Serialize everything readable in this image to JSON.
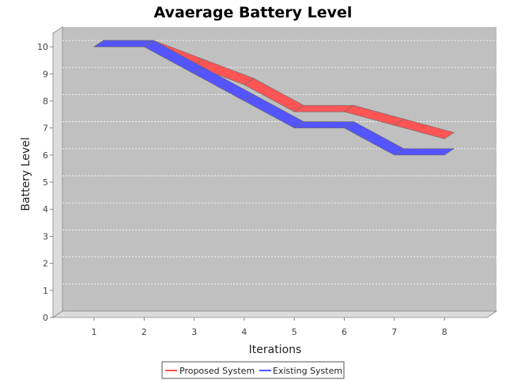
{
  "chart_data": {
    "type": "line",
    "style": "3d",
    "title": "Avaerage Battery Level",
    "xlabel": "Iterations",
    "ylabel": "Battery Level",
    "categories": [
      "1",
      "2",
      "3",
      "4",
      "5",
      "6",
      "7",
      "8"
    ],
    "yticks": [
      "0",
      "1",
      "2",
      "3",
      "4",
      "5",
      "6",
      "7",
      "8",
      "9",
      "10"
    ],
    "ylim": [
      0,
      10.5
    ],
    "grid": true,
    "legend_position": "bottom-center",
    "plot_background": "#c0c0c0",
    "wall_color": "#dcdcdc",
    "series": [
      {
        "name": "Proposed System",
        "color": "#ff5555",
        "values": [
          10,
          10,
          9.3,
          8.6,
          7.6,
          7.6,
          7.1,
          6.6
        ]
      },
      {
        "name": "Existing System",
        "color": "#5555ff",
        "values": [
          10,
          10,
          9,
          8,
          7,
          7,
          6,
          6
        ]
      }
    ]
  }
}
